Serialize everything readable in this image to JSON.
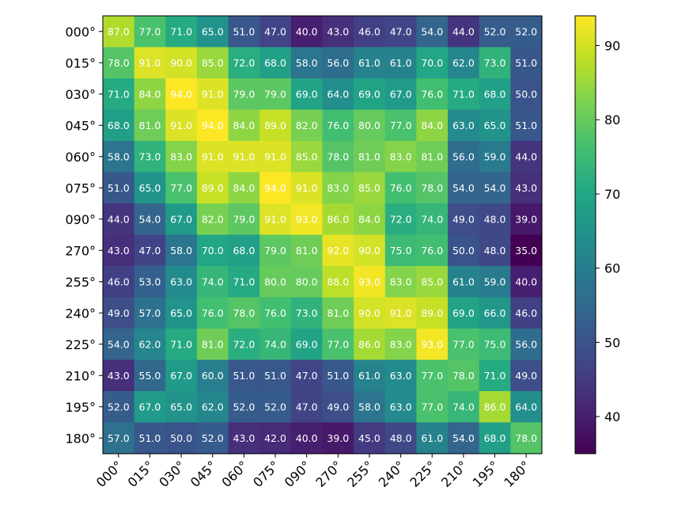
{
  "chart_data": {
    "type": "heatmap",
    "title": "",
    "xlabel": "",
    "ylabel": "",
    "x_labels": [
      "000°",
      "015°",
      "030°",
      "045°",
      "060°",
      "075°",
      "090°",
      "270°",
      "255°",
      "240°",
      "225°",
      "210°",
      "195°",
      "180°"
    ],
    "y_labels": [
      "000°",
      "015°",
      "030°",
      "045°",
      "060°",
      "075°",
      "090°",
      "270°",
      "255°",
      "240°",
      "225°",
      "210°",
      "195°",
      "180°"
    ],
    "values": [
      [
        87,
        77,
        71,
        65,
        51,
        47,
        40,
        43,
        46,
        47,
        54,
        44,
        52,
        52
      ],
      [
        78,
        91,
        90,
        85,
        72,
        68,
        58,
        56,
        61,
        61,
        70,
        62,
        73,
        51
      ],
      [
        71,
        84,
        94,
        91,
        79,
        79,
        69,
        64,
        69,
        67,
        76,
        71,
        68,
        50
      ],
      [
        68,
        81,
        91,
        94,
        84,
        89,
        82,
        76,
        80,
        77,
        84,
        63,
        65,
        51
      ],
      [
        58,
        73,
        83,
        91,
        91,
        91,
        85,
        78,
        81,
        83,
        81,
        56,
        59,
        44
      ],
      [
        51,
        65,
        77,
        89,
        84,
        94,
        91,
        83,
        85,
        76,
        78,
        54,
        54,
        43
      ],
      [
        44,
        54,
        67,
        82,
        79,
        91,
        93,
        86,
        84,
        72,
        74,
        49,
        48,
        39
      ],
      [
        43,
        47,
        58,
        70,
        68,
        79,
        81,
        92,
        90,
        75,
        76,
        50,
        48,
        35
      ],
      [
        46,
        53,
        63,
        74,
        71,
        80,
        80,
        88,
        93,
        83,
        85,
        61,
        59,
        40
      ],
      [
        49,
        57,
        65,
        76,
        78,
        76,
        73,
        81,
        90,
        91,
        89,
        69,
        66,
        46
      ],
      [
        54,
        62,
        71,
        81,
        72,
        74,
        69,
        77,
        86,
        83,
        93,
        77,
        75,
        56
      ],
      [
        43,
        55,
        67,
        60,
        51,
        51,
        47,
        51,
        61,
        63,
        77,
        78,
        71,
        49
      ],
      [
        52,
        67,
        65,
        62,
        52,
        52,
        47,
        49,
        58,
        63,
        77,
        74,
        86,
        64
      ],
      [
        57,
        51,
        50,
        52,
        43,
        42,
        40,
        39,
        45,
        48,
        61,
        54,
        68,
        78
      ]
    ],
    "value_format": "0.0",
    "colormap": "viridis",
    "color_range": [
      35,
      94
    ],
    "colorbar_ticks": [
      40,
      50,
      60,
      70,
      80,
      90
    ],
    "grid": false,
    "legend": "colorbar-right"
  }
}
